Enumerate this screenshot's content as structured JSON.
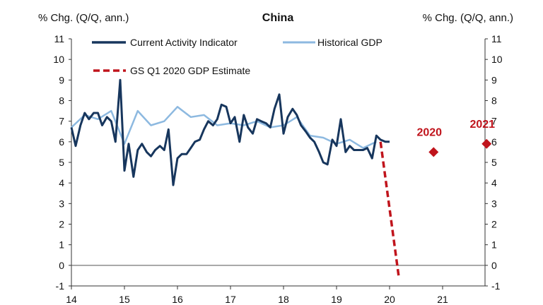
{
  "chart_data": {
    "type": "line",
    "title": "China",
    "ylabel_left": "% Chg. (Q/Q, ann.)",
    "ylabel_right": "% Chg. (Q/Q, ann.)",
    "xlabel": "",
    "ylim": [
      -1,
      11
    ],
    "yticks": [
      "-1",
      "0",
      "1",
      "2",
      "3",
      "4",
      "5",
      "6",
      "7",
      "8",
      "9",
      "10",
      "11"
    ],
    "xlim": [
      14,
      21.8
    ],
    "xticks": [
      "14",
      "15",
      "16",
      "17",
      "18",
      "19",
      "20",
      "21"
    ],
    "grid": false,
    "legend_position": "top-left",
    "colors": {
      "current_activity": "#17365d",
      "historical_gdp": "#8db9e0",
      "estimate": "#c0141c",
      "annotation": "#c0141c",
      "zero_line": "#555555",
      "axis": "#333333"
    },
    "series": [
      {
        "name": "Current Activity Indicator",
        "style": "solid",
        "x": [
          14.0,
          14.08,
          14.17,
          14.25,
          14.33,
          14.42,
          14.5,
          14.58,
          14.67,
          14.75,
          14.83,
          14.92,
          15.0,
          15.08,
          15.17,
          15.25,
          15.33,
          15.42,
          15.5,
          15.58,
          15.67,
          15.75,
          15.83,
          15.92,
          16.0,
          16.08,
          16.17,
          16.25,
          16.33,
          16.42,
          16.5,
          16.58,
          16.67,
          16.75,
          16.83,
          16.92,
          17.0,
          17.08,
          17.17,
          17.25,
          17.33,
          17.42,
          17.5,
          17.58,
          17.67,
          17.75,
          17.83,
          17.92,
          18.0,
          18.08,
          18.17,
          18.25,
          18.33,
          18.42,
          18.5,
          18.58,
          18.67,
          18.75,
          18.83,
          18.92,
          19.0,
          19.08,
          19.17,
          19.25,
          19.33,
          19.42,
          19.5,
          19.58,
          19.67,
          19.75,
          19.83,
          19.92,
          20.0
        ],
        "values": [
          6.7,
          5.8,
          6.8,
          7.4,
          7.1,
          7.4,
          7.4,
          6.8,
          7.2,
          7.0,
          6.0,
          9.0,
          4.6,
          5.9,
          4.3,
          5.6,
          5.9,
          5.5,
          5.3,
          5.6,
          5.8,
          5.6,
          6.6,
          3.9,
          5.2,
          5.4,
          5.4,
          5.7,
          6.0,
          6.1,
          6.6,
          7.0,
          6.8,
          7.1,
          7.8,
          7.7,
          6.9,
          7.2,
          6.0,
          7.3,
          6.7,
          6.4,
          7.1,
          7.0,
          6.9,
          6.7,
          7.6,
          8.3,
          6.4,
          7.2,
          7.6,
          7.3,
          6.8,
          6.5,
          6.2,
          6.0,
          5.5,
          5.0,
          4.9,
          6.1,
          5.8,
          7.1,
          5.5,
          5.8,
          5.6,
          5.6,
          5.6,
          5.7,
          5.2,
          6.3,
          6.1,
          6.0,
          6.0
        ]
      },
      {
        "name": "Historical GDP",
        "style": "solid",
        "x": [
          14.0,
          14.25,
          14.5,
          14.75,
          15.0,
          15.25,
          15.5,
          15.75,
          16.0,
          16.25,
          16.5,
          16.75,
          17.0,
          17.25,
          17.5,
          17.75,
          18.0,
          18.25,
          18.5,
          18.75,
          19.0,
          19.25,
          19.5,
          19.75
        ],
        "values": [
          6.7,
          7.3,
          7.1,
          7.5,
          5.9,
          7.5,
          6.8,
          7.0,
          7.7,
          7.2,
          7.3,
          6.8,
          6.9,
          6.8,
          7.0,
          6.7,
          6.8,
          7.2,
          6.3,
          6.2,
          5.9,
          6.1,
          5.7,
          6.0
        ]
      },
      {
        "name": "GS Q1 2020 GDP Estimate",
        "style": "dashed",
        "x": [
          19.83,
          20.17
        ],
        "values": [
          6.0,
          -0.5
        ]
      }
    ],
    "points": [
      {
        "label": "2020",
        "x": 20.83,
        "y": 5.5
      },
      {
        "label": "2021",
        "x": 21.83,
        "y": 5.9
      }
    ]
  }
}
